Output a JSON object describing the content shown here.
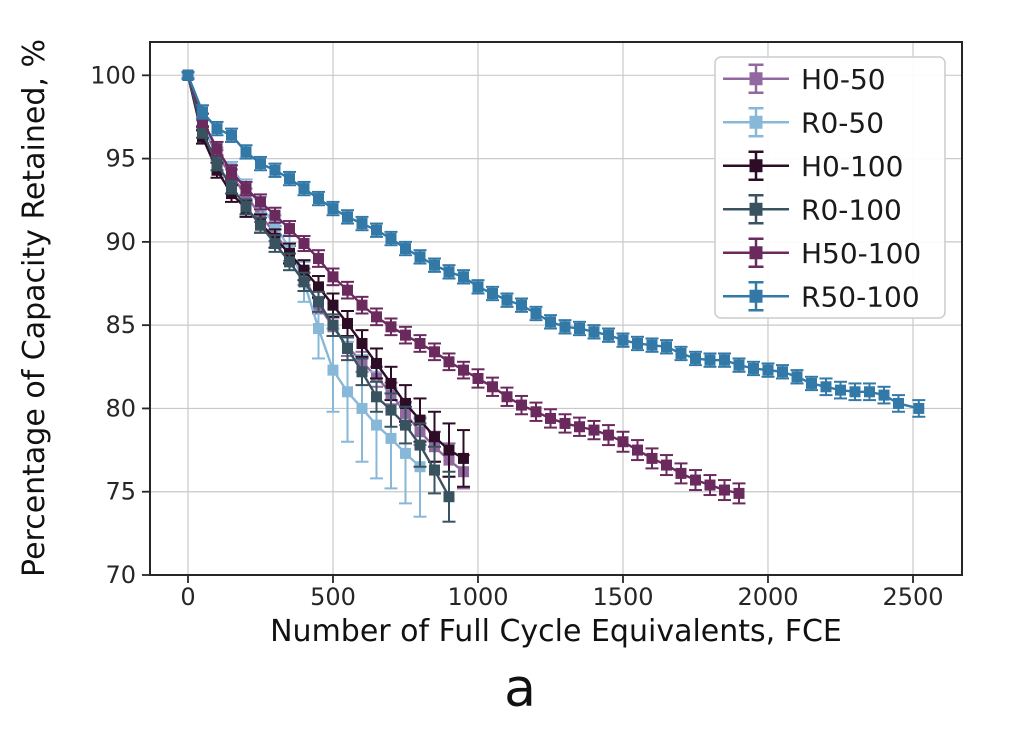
{
  "figure": {
    "caption": "a"
  },
  "chart_data": {
    "type": "line",
    "title": "",
    "xlabel": "Number of Full Cycle Equivalents, FCE",
    "ylabel": "Percentage of Capacity Retained, %",
    "xlim": [
      -131,
      2669
    ],
    "ylim": [
      70,
      102
    ],
    "xticks": [
      0,
      500,
      1000,
      1500,
      2000,
      2500
    ],
    "yticks": [
      70,
      75,
      80,
      85,
      90,
      95,
      100
    ],
    "grid": true,
    "legend_position": "upper right",
    "marker": "square",
    "error_bars": "vertical",
    "style": {
      "grid_color": "#c9c9c9",
      "spine_color": "#262626",
      "tick_color": "#262626",
      "background": "#ffffff",
      "legend_border": "#cccccc",
      "legend_fill": "#ffffff"
    },
    "series": [
      {
        "name": "H0-50",
        "color": "#9168a0",
        "x": [
          0,
          50,
          100,
          150,
          200,
          250,
          300,
          350,
          400,
          450,
          500,
          550,
          600,
          650,
          700,
          750,
          800,
          850,
          900,
          950
        ],
        "y": [
          100,
          97.0,
          95.2,
          94.0,
          92.8,
          91.6,
          90.5,
          89.3,
          87.9,
          86.2,
          84.9,
          83.7,
          82.8,
          81.9,
          80.9,
          79.7,
          78.6,
          77.7,
          76.9,
          76.2
        ],
        "yerr": [
          0.15,
          0.3,
          0.3,
          0.35,
          0.4,
          0.4,
          0.45,
          0.45,
          0.5,
          0.5,
          0.55,
          0.55,
          0.6,
          0.6,
          0.65,
          0.7,
          0.8,
          0.9,
          1.0,
          1.0
        ]
      },
      {
        "name": "R0-50",
        "color": "#88b8d8",
        "x": [
          0,
          50,
          100,
          150,
          200,
          250,
          300,
          350,
          400,
          450,
          500,
          550,
          600,
          650,
          700,
          750,
          800
        ],
        "y": [
          100,
          97.1,
          95.3,
          94.4,
          93.3,
          92.2,
          91.0,
          89.6,
          87.6,
          84.8,
          82.3,
          81.0,
          80.0,
          79.0,
          78.2,
          77.3,
          76.5
        ],
        "yerr": [
          0.15,
          0.3,
          0.35,
          0.4,
          0.45,
          0.5,
          0.6,
          0.8,
          1.2,
          1.8,
          2.5,
          3.0,
          3.2,
          3.2,
          3.0,
          3.0,
          3.0
        ]
      },
      {
        "name": "H0-100",
        "color": "#2d0c26",
        "x": [
          0,
          50,
          100,
          150,
          200,
          250,
          300,
          350,
          400,
          450,
          500,
          550,
          600,
          650,
          700,
          750,
          800,
          850,
          900,
          950
        ],
        "y": [
          100,
          96.3,
          94.3,
          92.9,
          92.0,
          91.1,
          90.2,
          89.3,
          88.3,
          87.3,
          86.2,
          85.1,
          83.9,
          82.7,
          81.5,
          80.3,
          79.3,
          78.3,
          77.5,
          77.0
        ],
        "yerr": [
          0.2,
          0.4,
          0.45,
          0.5,
          0.5,
          0.55,
          0.55,
          0.6,
          0.6,
          0.65,
          0.7,
          0.75,
          0.8,
          0.9,
          1.0,
          1.1,
          1.3,
          1.5,
          1.6,
          1.7
        ]
      },
      {
        "name": "R0-100",
        "color": "#38535f",
        "x": [
          0,
          50,
          100,
          150,
          200,
          250,
          300,
          350,
          400,
          450,
          500,
          550,
          600,
          650,
          700,
          750,
          800,
          850,
          900
        ],
        "y": [
          100,
          96.6,
          94.7,
          93.3,
          92.1,
          91.0,
          89.9,
          88.8,
          87.6,
          86.4,
          85.0,
          83.6,
          82.2,
          80.7,
          79.9,
          79.0,
          77.8,
          76.3,
          74.7
        ],
        "yerr": [
          0.2,
          0.35,
          0.4,
          0.4,
          0.45,
          0.45,
          0.5,
          0.5,
          0.55,
          0.6,
          0.65,
          0.7,
          0.8,
          0.9,
          1.0,
          1.1,
          1.3,
          1.4,
          1.5
        ]
      },
      {
        "name": "H50-100",
        "color": "#6b2a5e",
        "x": [
          0,
          50,
          100,
          150,
          200,
          250,
          300,
          350,
          400,
          450,
          500,
          550,
          600,
          650,
          700,
          750,
          800,
          850,
          900,
          950,
          1000,
          1050,
          1100,
          1150,
          1200,
          1250,
          1300,
          1350,
          1400,
          1450,
          1500,
          1550,
          1600,
          1650,
          1700,
          1750,
          1800,
          1850,
          1900
        ],
        "y": [
          100,
          97.3,
          95.6,
          94.2,
          93.2,
          92.4,
          91.6,
          90.8,
          89.9,
          89.0,
          87.9,
          87.1,
          86.2,
          85.5,
          84.9,
          84.4,
          83.9,
          83.4,
          82.8,
          82.3,
          81.8,
          81.3,
          80.7,
          80.2,
          79.8,
          79.4,
          79.1,
          78.9,
          78.7,
          78.4,
          78.0,
          77.5,
          77.0,
          76.6,
          76.1,
          75.7,
          75.4,
          75.1,
          74.9
        ],
        "yerr": [
          0.2,
          0.4,
          0.4,
          0.4,
          0.4,
          0.45,
          0.45,
          0.45,
          0.45,
          0.5,
          0.5,
          0.5,
          0.5,
          0.5,
          0.5,
          0.5,
          0.5,
          0.5,
          0.5,
          0.5,
          0.55,
          0.55,
          0.55,
          0.55,
          0.55,
          0.55,
          0.55,
          0.55,
          0.55,
          0.6,
          0.6,
          0.6,
          0.6,
          0.6,
          0.6,
          0.6,
          0.6,
          0.6,
          0.6
        ]
      },
      {
        "name": "R50-100",
        "color": "#3279a8",
        "x": [
          0,
          50,
          100,
          150,
          200,
          250,
          300,
          350,
          400,
          450,
          500,
          550,
          600,
          650,
          700,
          750,
          800,
          850,
          900,
          950,
          1000,
          1050,
          1100,
          1150,
          1200,
          1250,
          1300,
          1350,
          1400,
          1450,
          1500,
          1550,
          1600,
          1650,
          1700,
          1750,
          1800,
          1850,
          1900,
          1950,
          2000,
          2050,
          2100,
          2150,
          2200,
          2250,
          2300,
          2350,
          2400,
          2450,
          2520
        ],
        "y": [
          100,
          97.8,
          96.8,
          96.4,
          95.4,
          94.7,
          94.3,
          93.8,
          93.2,
          92.6,
          92.0,
          91.5,
          91.1,
          90.7,
          90.2,
          89.6,
          89.1,
          88.6,
          88.2,
          87.9,
          87.3,
          86.9,
          86.5,
          86.2,
          85.7,
          85.2,
          84.9,
          84.8,
          84.6,
          84.4,
          84.1,
          83.9,
          83.8,
          83.7,
          83.3,
          83.0,
          82.9,
          82.9,
          82.6,
          82.4,
          82.3,
          82.2,
          81.9,
          81.5,
          81.3,
          81.1,
          81.0,
          81.0,
          80.8,
          80.3,
          80.0
        ],
        "yerr": [
          0.2,
          0.4,
          0.4,
          0.4,
          0.4,
          0.4,
          0.4,
          0.4,
          0.4,
          0.4,
          0.4,
          0.4,
          0.4,
          0.4,
          0.4,
          0.4,
          0.4,
          0.4,
          0.4,
          0.4,
          0.4,
          0.4,
          0.4,
          0.4,
          0.4,
          0.4,
          0.4,
          0.4,
          0.4,
          0.4,
          0.4,
          0.4,
          0.4,
          0.4,
          0.4,
          0.4,
          0.4,
          0.4,
          0.4,
          0.4,
          0.4,
          0.4,
          0.4,
          0.4,
          0.5,
          0.5,
          0.5,
          0.5,
          0.5,
          0.5,
          0.5
        ]
      }
    ]
  }
}
